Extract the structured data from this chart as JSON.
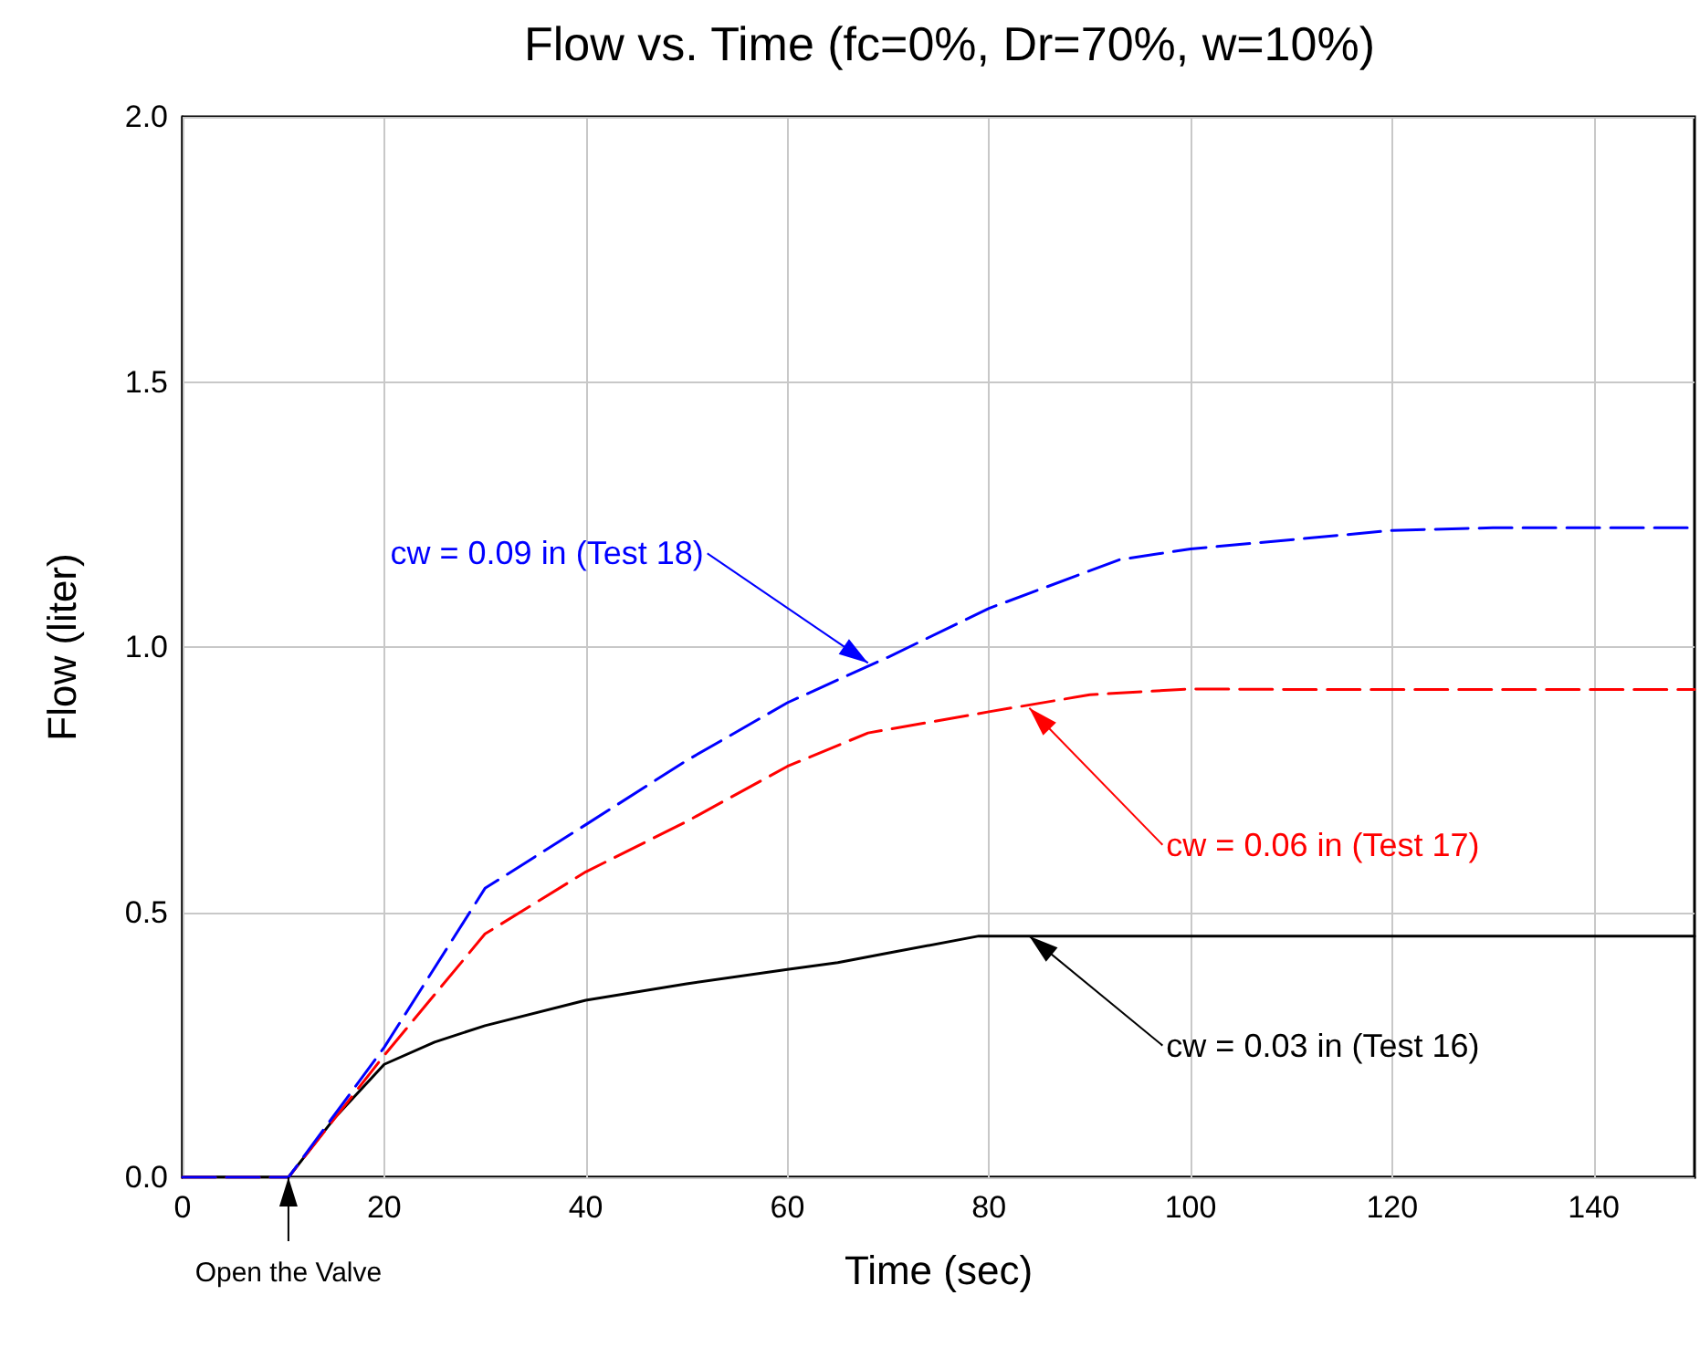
{
  "chart_data": {
    "type": "line",
    "title": "Flow vs. Time (fc=0%, Dr=70%, w=10%)",
    "xlabel": "Time (sec)",
    "ylabel": "Flow (liter)",
    "xlim": [
      0,
      150
    ],
    "xticks": [
      0,
      20,
      40,
      60,
      80,
      100,
      120,
      140
    ],
    "ylim": [
      0,
      2
    ],
    "yticks": [
      {
        "value": 0,
        "label": "0.0"
      },
      {
        "value": 0.5,
        "label": "0.5"
      },
      {
        "value": 1,
        "label": "1.0"
      },
      {
        "value": 1.5,
        "label": "1.5"
      },
      {
        "value": 2,
        "label": "2.0"
      }
    ],
    "grid": true,
    "marker": "none",
    "series": [
      {
        "color": "#000000",
        "line_style": "solid",
        "x": [
          0,
          10.5,
          15,
          20,
          25,
          30,
          40,
          50,
          60,
          65,
          70,
          79,
          100,
          150
        ],
        "values": [
          0,
          0,
          0.11,
          0.213,
          0.255,
          0.286,
          0.334,
          0.365,
          0.392,
          0.405,
          0.423,
          0.455,
          0.455,
          0.455
        ]
      },
      {
        "color": "#ff0000",
        "line_style": "dashed",
        "x": [
          0,
          10.5,
          20,
          30,
          40,
          50,
          60,
          68,
          80,
          90,
          100,
          110,
          150
        ],
        "values": [
          0,
          0,
          0.23,
          0.459,
          0.576,
          0.671,
          0.775,
          0.838,
          0.878,
          0.91,
          0.921,
          0.92,
          0.92
        ]
      },
      {
        "color": "#0000ff",
        "line_style": "dashed",
        "x": [
          0,
          10.5,
          20,
          30,
          40,
          50,
          60,
          70,
          80,
          93,
          100,
          120,
          130,
          150
        ],
        "values": [
          0,
          0,
          0.245,
          0.545,
          0.665,
          0.786,
          0.895,
          0.981,
          1.073,
          1.165,
          1.185,
          1.22,
          1.225,
          1.225
        ]
      }
    ],
    "annotations": [
      {
        "text": "cw = 0.09 in (Test 18)",
        "x": 68,
        "y": 0.97
      },
      {
        "text": "cw = 0.06 in (Test 17)",
        "x": 84,
        "y": 0.885
      },
      {
        "text": "cw = 0.03 in (Test 16)",
        "x": 84,
        "y": 0.455
      },
      {
        "text": "Open the Valve",
        "x": 10.5,
        "y": 0
      }
    ]
  }
}
